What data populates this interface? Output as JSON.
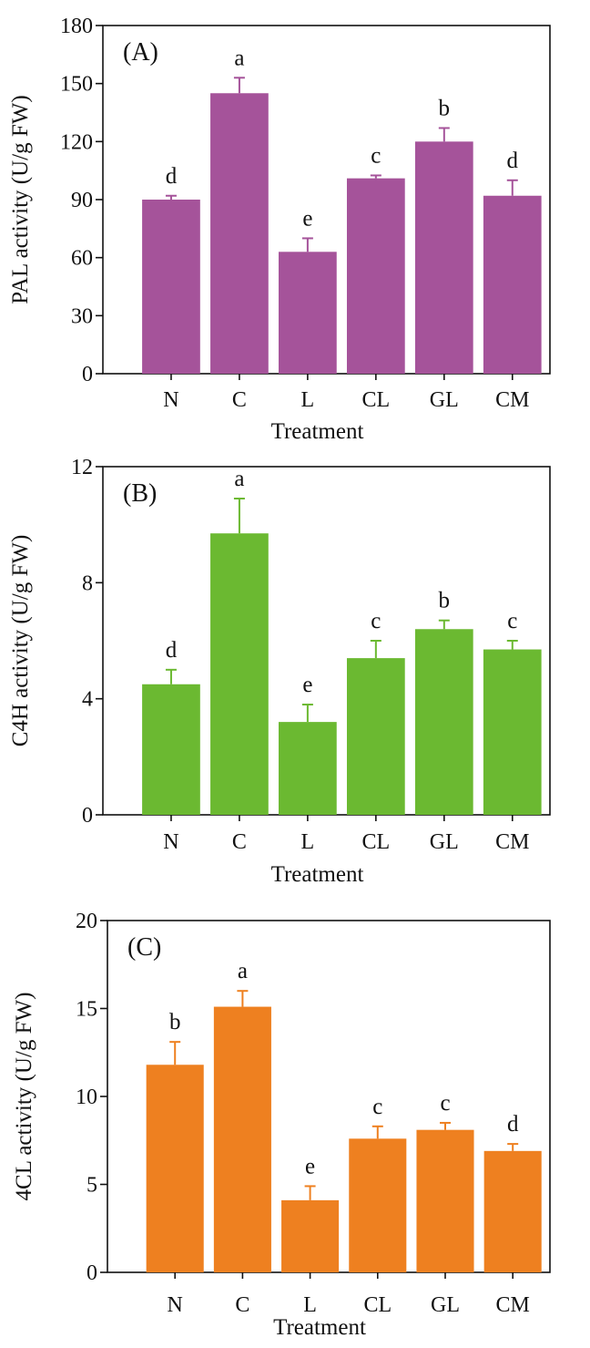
{
  "chart_data": [
    {
      "type": "bar",
      "panel_label": "(A)",
      "categories": [
        "N",
        "C",
        "L",
        "CL",
        "GL",
        "CM"
      ],
      "values": [
        90,
        145,
        63,
        101,
        120,
        92
      ],
      "errors": [
        2,
        8,
        7,
        1.5,
        7,
        8
      ],
      "significance": [
        "d",
        "a",
        "e",
        "c",
        "b",
        "d"
      ],
      "xlabel": "Treatment",
      "ylabel": "PAL activity (U/g FW)",
      "ylim": [
        0,
        180
      ],
      "yticks": [
        0,
        30,
        60,
        90,
        120,
        150,
        180
      ],
      "bar_color": "#a5539a",
      "grid": false
    },
    {
      "type": "bar",
      "panel_label": "(B)",
      "categories": [
        "N",
        "C",
        "L",
        "CL",
        "GL",
        "CM"
      ],
      "values": [
        4.5,
        9.7,
        3.2,
        5.4,
        6.4,
        5.7
      ],
      "errors": [
        0.5,
        1.2,
        0.6,
        0.6,
        0.3,
        0.3
      ],
      "significance": [
        "d",
        "a",
        "e",
        "c",
        "b",
        "c"
      ],
      "xlabel": "Treatment",
      "ylabel": "C4H activity (U/g FW)",
      "ylim": [
        0,
        12
      ],
      "yticks": [
        0,
        4,
        8,
        12
      ],
      "bar_color": "#6bb931",
      "grid": false
    },
    {
      "type": "bar",
      "panel_label": "(C)",
      "categories": [
        "N",
        "C",
        "L",
        "CL",
        "GL",
        "CM"
      ],
      "values": [
        11.8,
        15.1,
        4.1,
        7.6,
        8.1,
        6.9
      ],
      "errors": [
        1.3,
        0.9,
        0.8,
        0.7,
        0.4,
        0.4
      ],
      "significance": [
        "b",
        "a",
        "e",
        "c",
        "c",
        "d"
      ],
      "xlabel": "Treatment",
      "ylabel": "4CL activity (U/g FW)",
      "ylim": [
        0,
        20
      ],
      "yticks": [
        0,
        5,
        10,
        15,
        20
      ],
      "bar_color": "#ee8020",
      "grid": false
    }
  ]
}
